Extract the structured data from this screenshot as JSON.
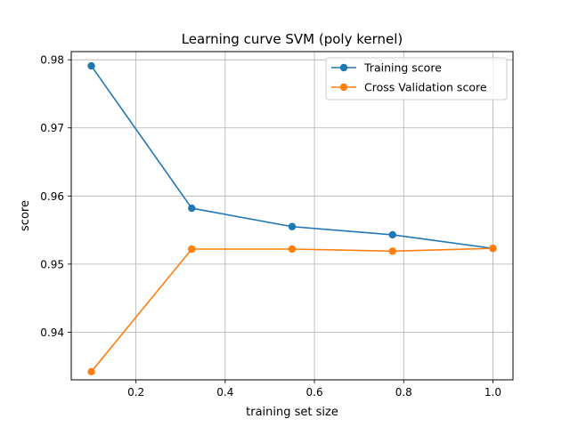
{
  "chart_data": {
    "type": "line",
    "title": "Learning curve  SVM (poly kernel)",
    "xlabel": "training set size",
    "ylabel": "score",
    "xlim": [
      0.055,
      1.045
    ],
    "ylim": [
      0.933,
      0.9812
    ],
    "xticks": [
      0.2,
      0.4,
      0.6,
      0.8,
      1.0
    ],
    "xtick_labels": [
      "0.2",
      "0.4",
      "0.6",
      "0.8",
      "1.0"
    ],
    "yticks": [
      0.94,
      0.95,
      0.96,
      0.97,
      0.98
    ],
    "ytick_labels": [
      "0.94",
      "0.95",
      "0.96",
      "0.97",
      "0.98"
    ],
    "grid": true,
    "legend_position": "top-right",
    "x": [
      0.1,
      0.325,
      0.55,
      0.775,
      1.0
    ],
    "series": [
      {
        "name": "Training score",
        "color": "#1f77b4",
        "values": [
          0.9791,
          0.9582,
          0.9555,
          0.9543,
          0.9523
        ]
      },
      {
        "name": "Cross Validation score",
        "color": "#ff7f0e",
        "values": [
          0.9342,
          0.9522,
          0.9522,
          0.9519,
          0.9523
        ]
      }
    ]
  }
}
